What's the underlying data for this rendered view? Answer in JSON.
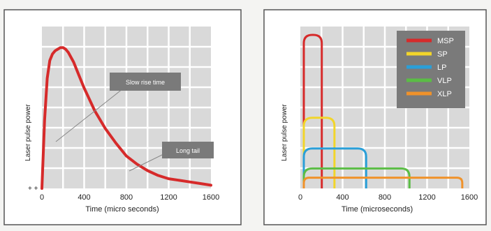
{
  "chart_data": [
    {
      "type": "line",
      "xlabel": "Time (micro seconds)",
      "ylabel": "Laser pulse power",
      "xlim": [
        0,
        1600
      ],
      "x_ticks": [
        "0",
        "400",
        "800",
        "1200",
        "1600"
      ],
      "grid": true,
      "series": [
        {
          "color": "#d62a2a",
          "x": [
            0,
            25,
            50,
            75,
            100,
            125,
            150,
            175,
            200,
            225,
            250,
            300,
            350,
            400,
            500,
            600,
            700,
            800,
            900,
            1000,
            1100,
            1200,
            1300,
            1400,
            1500,
            1600
          ],
          "y": [
            0,
            42,
            68,
            79,
            83,
            85,
            86,
            87,
            87,
            86,
            84,
            78,
            70,
            62,
            48,
            37,
            28,
            20,
            15,
            11,
            8,
            6,
            5,
            4,
            3,
            2
          ]
        }
      ],
      "annotations": [
        {
          "text": "Slow rise time",
          "point": [
            120,
            68
          ]
        },
        {
          "text": "Long tail",
          "point": [
            820,
            22
          ]
        }
      ]
    },
    {
      "type": "line",
      "xlabel": "Time (microseconds)",
      "ylabel": "Laser pulse power",
      "xlim": [
        0,
        1600
      ],
      "x_ticks": [
        "0",
        "400",
        "800",
        "1200",
        "1600"
      ],
      "grid": true,
      "legend_position": "top-right",
      "series": [
        {
          "name": "MSP",
          "color": "#d62a2a",
          "duration": 170,
          "peak": 100
        },
        {
          "name": "SP",
          "color": "#f2d52a",
          "duration": 290,
          "peak": 46
        },
        {
          "name": "LP",
          "color": "#2a9fd8",
          "duration": 590,
          "peak": 26
        },
        {
          "name": "VLP",
          "color": "#5bbd45",
          "duration": 1000,
          "peak": 13
        },
        {
          "name": "XLP",
          "color": "#f0922a",
          "duration": 1500,
          "peak": 7
        }
      ]
    }
  ]
}
